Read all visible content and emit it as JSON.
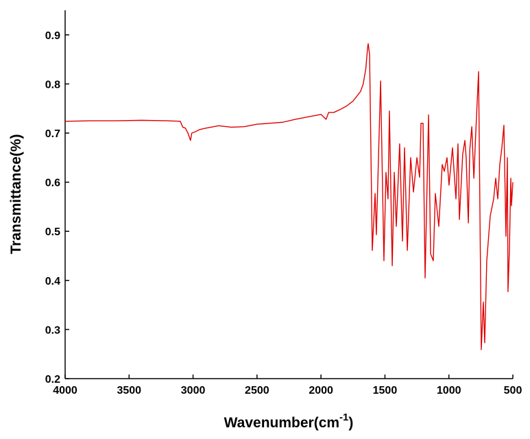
{
  "chart_data": {
    "type": "line",
    "x_label": [
      "Wavenumber(cm",
      "-1",
      ")"
    ],
    "y_label": "Transmittance(%)",
    "xlim": [
      4000,
      500
    ],
    "ylim": [
      0.2,
      0.95
    ],
    "xticks": [
      4000,
      3500,
      3000,
      2500,
      2000,
      1500,
      1000,
      500
    ],
    "yticks": [
      0.2,
      0.3,
      0.4,
      0.5,
      0.6,
      0.7,
      0.8,
      0.9
    ],
    "x": [
      4000,
      3800,
      3600,
      3400,
      3200,
      3100,
      3080,
      3060,
      3040,
      3020,
      3010,
      2980,
      2950,
      2900,
      2800,
      2700,
      2600,
      2500,
      2400,
      2300,
      2200,
      2100,
      2000,
      1960,
      1940,
      1900,
      1850,
      1800,
      1750,
      1720,
      1690,
      1670,
      1650,
      1635,
      1631,
      1620,
      1599,
      1577,
      1567,
      1534,
      1508,
      1492,
      1476,
      1465,
      1443,
      1427,
      1411,
      1385,
      1363,
      1347,
      1325,
      1299,
      1277,
      1250,
      1229,
      1218,
      1202,
      1186,
      1159,
      1143,
      1122,
      1106,
      1079,
      1052,
      1036,
      1015,
      999,
      972,
      945,
      929,
      918,
      892,
      875,
      865,
      848,
      837,
      821,
      805,
      789,
      768,
      747,
      731,
      720,
      704,
      677,
      650,
      634,
      618,
      602,
      586,
      570,
      554,
      543,
      538,
      527,
      516,
      511,
      500
    ],
    "series": [
      {
        "color": "#e00000",
        "values": [
          0.724,
          0.725,
          0.725,
          0.726,
          0.725,
          0.724,
          0.712,
          0.71,
          0.7,
          0.685,
          0.7,
          0.703,
          0.707,
          0.71,
          0.715,
          0.712,
          0.713,
          0.718,
          0.72,
          0.722,
          0.728,
          0.733,
          0.738,
          0.728,
          0.742,
          0.742,
          0.748,
          0.755,
          0.765,
          0.775,
          0.785,
          0.8,
          0.83,
          0.875,
          0.882,
          0.86,
          0.461,
          0.577,
          0.493,
          0.806,
          0.44,
          0.62,
          0.566,
          0.745,
          0.43,
          0.62,
          0.51,
          0.678,
          0.48,
          0.67,
          0.461,
          0.65,
          0.58,
          0.65,
          0.61,
          0.72,
          0.72,
          0.405,
          0.737,
          0.454,
          0.44,
          0.577,
          0.51,
          0.636,
          0.622,
          0.65,
          0.594,
          0.67,
          0.566,
          0.678,
          0.524,
          0.657,
          0.685,
          0.65,
          0.517,
          0.664,
          0.713,
          0.608,
          0.706,
          0.825,
          0.259,
          0.356,
          0.273,
          0.44,
          0.531,
          0.566,
          0.608,
          0.566,
          0.636,
          0.67,
          0.716,
          0.49,
          0.65,
          0.377,
          0.461,
          0.608,
          0.552,
          0.6
        ]
      }
    ]
  }
}
